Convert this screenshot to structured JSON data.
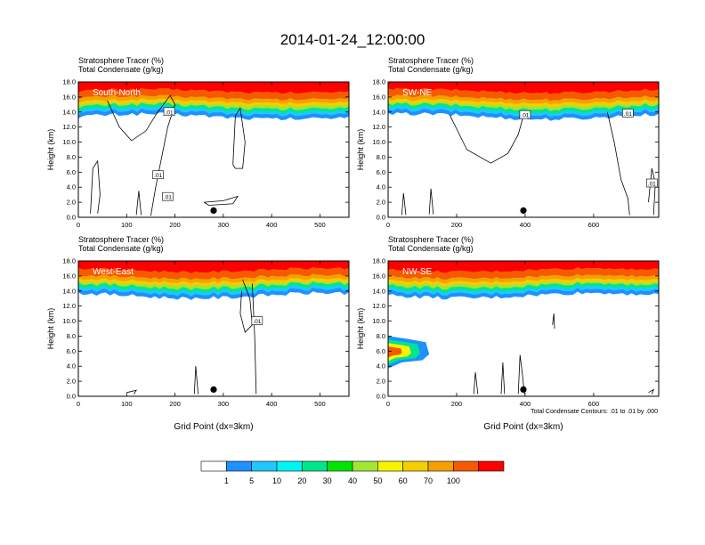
{
  "title": "2014-01-24_12:00:00",
  "header_lines": [
    "Stratosphere Tracer   (%)",
    "Total Condensate   (g/kg)"
  ],
  "contour_note": "Total Condensate Contours: .01 to .01 by .000",
  "colors": {
    "levels": [
      "#ffffff",
      "#1e90ff",
      "#1ec8ff",
      "#00f5f5",
      "#00e68c",
      "#00e600",
      "#a0e632",
      "#f5f500",
      "#f5cd00",
      "#f5a000",
      "#f55a00",
      "#ff0000"
    ]
  },
  "colorbar_labels": [
    "1",
    "5",
    "10",
    "20",
    "30",
    "40",
    "50",
    "60",
    "70",
    "100"
  ],
  "chart_data": [
    {
      "type": "heatmap",
      "panel_label": "South-North",
      "ylabel": "Height (km)",
      "xlabel": "",
      "xlim": [
        0,
        560
      ],
      "ylim": [
        0,
        18
      ],
      "xticks": [
        0,
        100,
        200,
        300,
        400,
        500
      ],
      "yticks": [
        "0.0",
        "2.0",
        "4.0",
        "6.0",
        "8.0",
        "10.0",
        "12.0",
        "14.0",
        "16.0",
        "18.0"
      ],
      "contour_labels": [
        ".01",
        ".01",
        ".01"
      ],
      "marker_x": 280
    },
    {
      "type": "heatmap",
      "panel_label": "SW-NE",
      "ylabel": "Height (km)",
      "xlabel": "",
      "xlim": [
        0,
        790
      ],
      "ylim": [
        0,
        18
      ],
      "xticks": [
        0,
        200,
        400,
        600
      ],
      "yticks": [
        "0.0",
        "2.0",
        "4.0",
        "6.0",
        "8.0",
        "10.0",
        "12.0",
        "14.0",
        "16.0",
        "18.0"
      ],
      "contour_labels": [
        ".01",
        ".01",
        ".01"
      ],
      "marker_x": 395
    },
    {
      "type": "heatmap",
      "panel_label": "West-East",
      "ylabel": "Height (km)",
      "xlabel": "Grid Point (dx=3km)",
      "xlim": [
        0,
        560
      ],
      "ylim": [
        0,
        18
      ],
      "xticks": [
        0,
        100,
        200,
        300,
        400,
        500
      ],
      "yticks": [
        "0.0",
        "2.0",
        "4.0",
        "6.0",
        "8.0",
        "10.0",
        "12.0",
        "14.0",
        "16.0",
        "18.0"
      ],
      "contour_labels": [
        ".01"
      ],
      "marker_x": 280
    },
    {
      "type": "heatmap",
      "panel_label": "NW-SE",
      "ylabel": "Height (km)",
      "xlabel": "Grid Point (dx=3km)",
      "xlim": [
        0,
        790
      ],
      "ylim": [
        0,
        18
      ],
      "xticks": [
        0,
        200,
        400,
        600
      ],
      "yticks": [
        "0.0",
        "2.0",
        "4.0",
        "6.0",
        "8.0",
        "10.0",
        "12.0",
        "14.0",
        "16.0",
        "18.0"
      ],
      "contour_labels": [],
      "marker_x": 395
    }
  ]
}
